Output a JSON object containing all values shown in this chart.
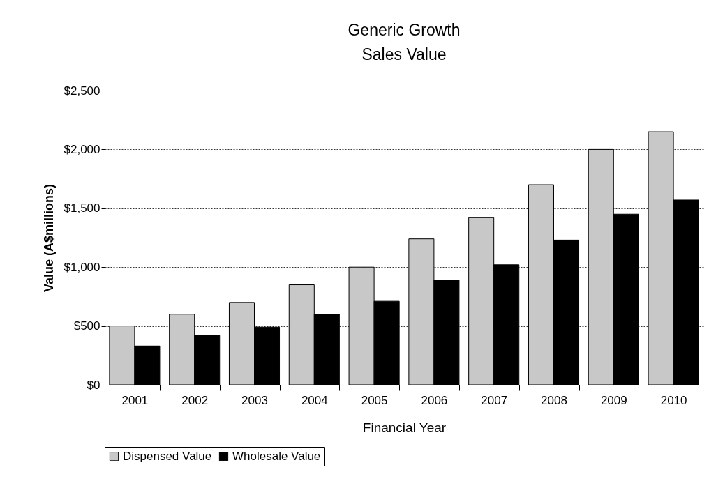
{
  "chart_data": {
    "type": "bar",
    "title": "Generic Growth",
    "subtitle": "Sales Value",
    "xlabel": "Financial Year",
    "ylabel": "Value (A$millions)",
    "categories": [
      "2001",
      "2002",
      "2003",
      "2004",
      "2005",
      "2006",
      "2007",
      "2008",
      "2009",
      "2010"
    ],
    "series": [
      {
        "name": "Dispensed Value",
        "color": "#c8c8c8",
        "values": [
          500,
          600,
          700,
          850,
          1000,
          1240,
          1420,
          1700,
          2000,
          2150
        ]
      },
      {
        "name": "Wholesale Value",
        "color": "#000000",
        "values": [
          330,
          420,
          490,
          600,
          710,
          890,
          1020,
          1230,
          1450,
          1570
        ]
      }
    ],
    "ylim": [
      0,
      2500
    ],
    "yticks": [
      {
        "value": 0,
        "label": "$0"
      },
      {
        "value": 500,
        "label": "$500"
      },
      {
        "value": 1000,
        "label": "$1,000"
      },
      {
        "value": 1500,
        "label": "$1,500"
      },
      {
        "value": 2000,
        "label": "$2,000"
      },
      {
        "value": 2500,
        "label": "$2,500"
      }
    ],
    "grid": "y",
    "legend": "bottom"
  }
}
